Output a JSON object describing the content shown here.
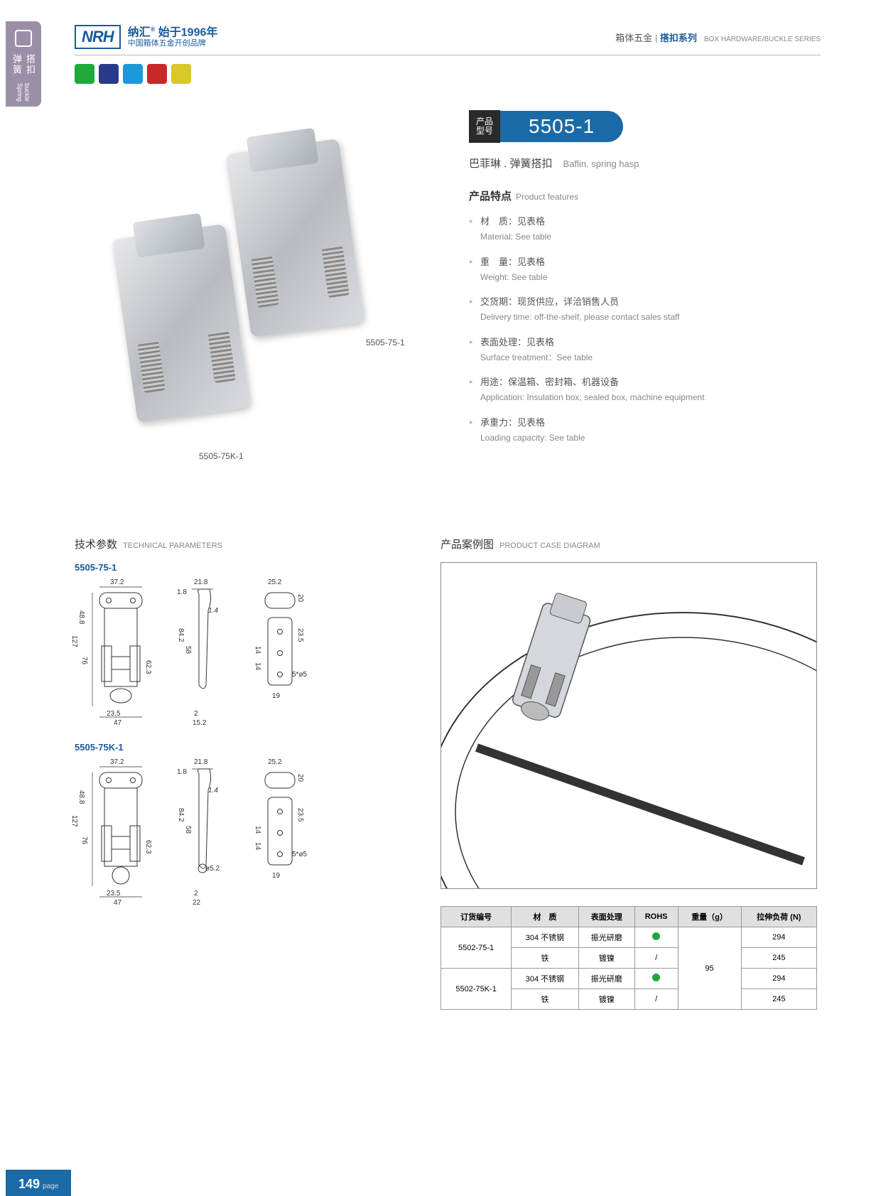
{
  "sidebar": {
    "cn": "弹簧搭扣",
    "en": "Spring buckle"
  },
  "logo": {
    "brand": "NRH",
    "line1": "纳汇",
    "since": "始于1996年",
    "line2": "中国箱体五金开创品牌"
  },
  "breadcrumb": {
    "cn1": "箱体五金",
    "cn2": "搭扣系列",
    "en": "BOX HARDWARE/BUCKLE SERIES"
  },
  "badge_colors": [
    "#1daa3a",
    "#2a3a8a",
    "#1a9ad8",
    "#c8282a",
    "#d8c828"
  ],
  "product_images": {
    "label1": "5505-75-1",
    "label2": "5505-75K-1"
  },
  "product_number": {
    "label": "产品\n型号",
    "value": "5505-1"
  },
  "subtitle": {
    "cn": "巴菲琳 . 弹簧搭扣",
    "en": "Baflin. spring hasp"
  },
  "features_heading": {
    "cn": "产品特点",
    "en": "Product features"
  },
  "features": [
    {
      "cn": "材　质：见表格",
      "en": "Material: See table"
    },
    {
      "cn": "重　量：见表格",
      "en": "Weight: See table"
    },
    {
      "cn": "交货期：现货供应，详洽销售人员",
      "en": "Delivery time: off-the-shelf, please contact sales staff"
    },
    {
      "cn": "表面处理：见表格",
      "en": "Surface treatment：See table"
    },
    {
      "cn": "用途：保温箱、密封箱、机器设备",
      "en": "Application: Insulation box, sealed box, machine equipment"
    },
    {
      "cn": "承重力：见表格",
      "en": "Loading capacity: See table"
    }
  ],
  "tech_heading": {
    "cn": "技术参数",
    "en": "TECHNICAL PARAMETERS"
  },
  "case_heading": {
    "cn": "产品案例图",
    "en": "PRODUCT CASE DIAGRAM"
  },
  "drawings": {
    "models": [
      "5505-75-1",
      "5505-75K-1"
    ],
    "dims_v1": {
      "w1": "37.2",
      "h1": "48.8",
      "h2": "127",
      "h3": "76",
      "h4": "62.3",
      "b1": "23.5",
      "b2": "47",
      "sw": "21.8",
      "st": "1.8",
      "sr": "1.4",
      "sh": "84.2",
      "sh2": "58",
      "sb": "2",
      "sb2": "15.2",
      "cw": "25.2",
      "ch": "20",
      "ch2": "23.5",
      "ci": "14",
      "ci2": "14",
      "cb": "19",
      "hole": "5*ø5"
    },
    "dims_v2": {
      "w1": "37.2",
      "h1": "48.8",
      "h2": "127",
      "h3": "76",
      "h4": "62.3",
      "b1": "23.5",
      "b2": "47",
      "sw": "21.8",
      "st": "1.8",
      "sr": "1.4",
      "sh": "84.2",
      "sh2": "58",
      "sb": "2",
      "sb2": "22",
      "khole": "ø5.2",
      "cw": "25.2",
      "ch": "20",
      "ch2": "23.5",
      "ci": "14",
      "ci2": "14",
      "cb": "19",
      "hole": "5*ø5"
    }
  },
  "table": {
    "headers": [
      "订货编号",
      "材　质",
      "表面处理",
      "ROHS",
      "重量（g）",
      "拉伸负荷 (N)"
    ],
    "rows": [
      {
        "code": "5502-75-1",
        "mat": "304 不锈钢",
        "surf": "振光研磨",
        "rohs": "dot",
        "wt": "95",
        "load": "294"
      },
      {
        "code": "",
        "mat": "铁",
        "surf": "镀镍",
        "rohs": "/",
        "wt": "",
        "load": "245"
      },
      {
        "code": "5502-75K-1",
        "mat": "304 不锈钢",
        "surf": "振光研磨",
        "rohs": "dot",
        "wt": "",
        "load": "294"
      },
      {
        "code": "",
        "mat": "铁",
        "surf": "镀镍",
        "rohs": "/",
        "wt": "",
        "load": "245"
      }
    ],
    "merged_weight": "95"
  },
  "page_number": "149",
  "page_label": "page",
  "colors": {
    "brand": "#1a5a9a",
    "accent": "#1a6aa8",
    "sidebar": "#9b8fa8",
    "dot": "#1daa3a"
  }
}
